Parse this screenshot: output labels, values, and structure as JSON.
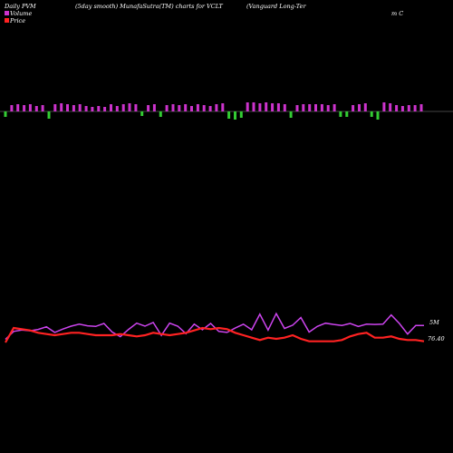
{
  "header": {
    "left_title": "Daily PVM",
    "mid_title": "(5day smooth) MunafaSutra(TM) charts for VCLT",
    "right_title_line1": "(Vanguard Long-Ter",
    "right_title_line2": "m C"
  },
  "legend": {
    "volume_label": "Volume",
    "price_label": "Price",
    "volume_color": "#cc33cc",
    "price_color": "#ff2222"
  },
  "labels": {
    "volume_axis": "5M",
    "price_axis": "76.40"
  },
  "colors": {
    "background": "#000000",
    "up_bar": "#cc33cc",
    "down_bar": "#33cc33",
    "volume_line": "#cc44ee",
    "price_line": "#ff2222",
    "zero_line": "#888888"
  },
  "chart_data": [
    {
      "type": "bar",
      "title": "",
      "series": [
        {
          "values": [
            -0.6,
            0.7,
            0.8,
            0.7,
            0.8,
            0.6,
            0.7,
            -0.8,
            0.8,
            0.9,
            0.8,
            0.7,
            0.8,
            0.6,
            0.5,
            0.6,
            0.5,
            0.8,
            0.6,
            0.8,
            0.9,
            0.8,
            -0.5,
            0.7,
            0.8,
            -0.6,
            0.7,
            0.8,
            0.7,
            0.8,
            0.6,
            0.8,
            0.7,
            0.6,
            0.8,
            0.9,
            -0.8,
            -0.9,
            -0.7,
            1.0,
            1.0,
            0.9,
            1.0,
            0.9,
            0.9,
            0.8,
            -0.7,
            0.7,
            0.8,
            0.8,
            0.8,
            0.8,
            0.7,
            0.8,
            -0.6,
            -0.6,
            0.7,
            0.8,
            0.9,
            -0.6,
            -0.9,
            1.0,
            0.9,
            0.7,
            0.6,
            0.7,
            0.7,
            0.8
          ]
        }
      ],
      "signs_note": ""
    },
    {
      "type": "line",
      "title": "",
      "series": [
        {
          "name": "Volume",
          "values": [
            2.4,
            4.8,
            5.2,
            5.0,
            5.4,
            6.2,
            4.5,
            5.5,
            6.4,
            7.0,
            6.5,
            6.3,
            7.2,
            4.6,
            3.2,
            5.4,
            7.3,
            6.4,
            7.5,
            3.6,
            7.3,
            6.4,
            4.1,
            7.0,
            5.3,
            7.2,
            4.8,
            4.5,
            5.8,
            7.0,
            5.3,
            10.0,
            5.2,
            10.2,
            5.7,
            6.7,
            9.0,
            4.6,
            6.3,
            7.3,
            6.9,
            6.6,
            7.2,
            6.3,
            7.0,
            6.9,
            7.0,
            9.8,
            7.2,
            4.0,
            6.6,
            6.6
          ]
        },
        {
          "name": "Price",
          "values": [
            76.2,
            76.8,
            76.75,
            76.7,
            76.6,
            76.55,
            76.5,
            76.55,
            76.6,
            76.6,
            76.55,
            76.5,
            76.5,
            76.5,
            76.55,
            76.5,
            76.45,
            76.5,
            76.6,
            76.55,
            76.5,
            76.55,
            76.6,
            76.7,
            76.8,
            76.75,
            76.8,
            76.75,
            76.6,
            76.5,
            76.4,
            76.3,
            76.4,
            76.35,
            76.4,
            76.5,
            76.35,
            76.25,
            76.25,
            76.25,
            76.25,
            76.3,
            76.45,
            76.55,
            76.6,
            76.4,
            76.4,
            76.45,
            76.35,
            76.3,
            76.3,
            76.25
          ]
        }
      ]
    }
  ]
}
